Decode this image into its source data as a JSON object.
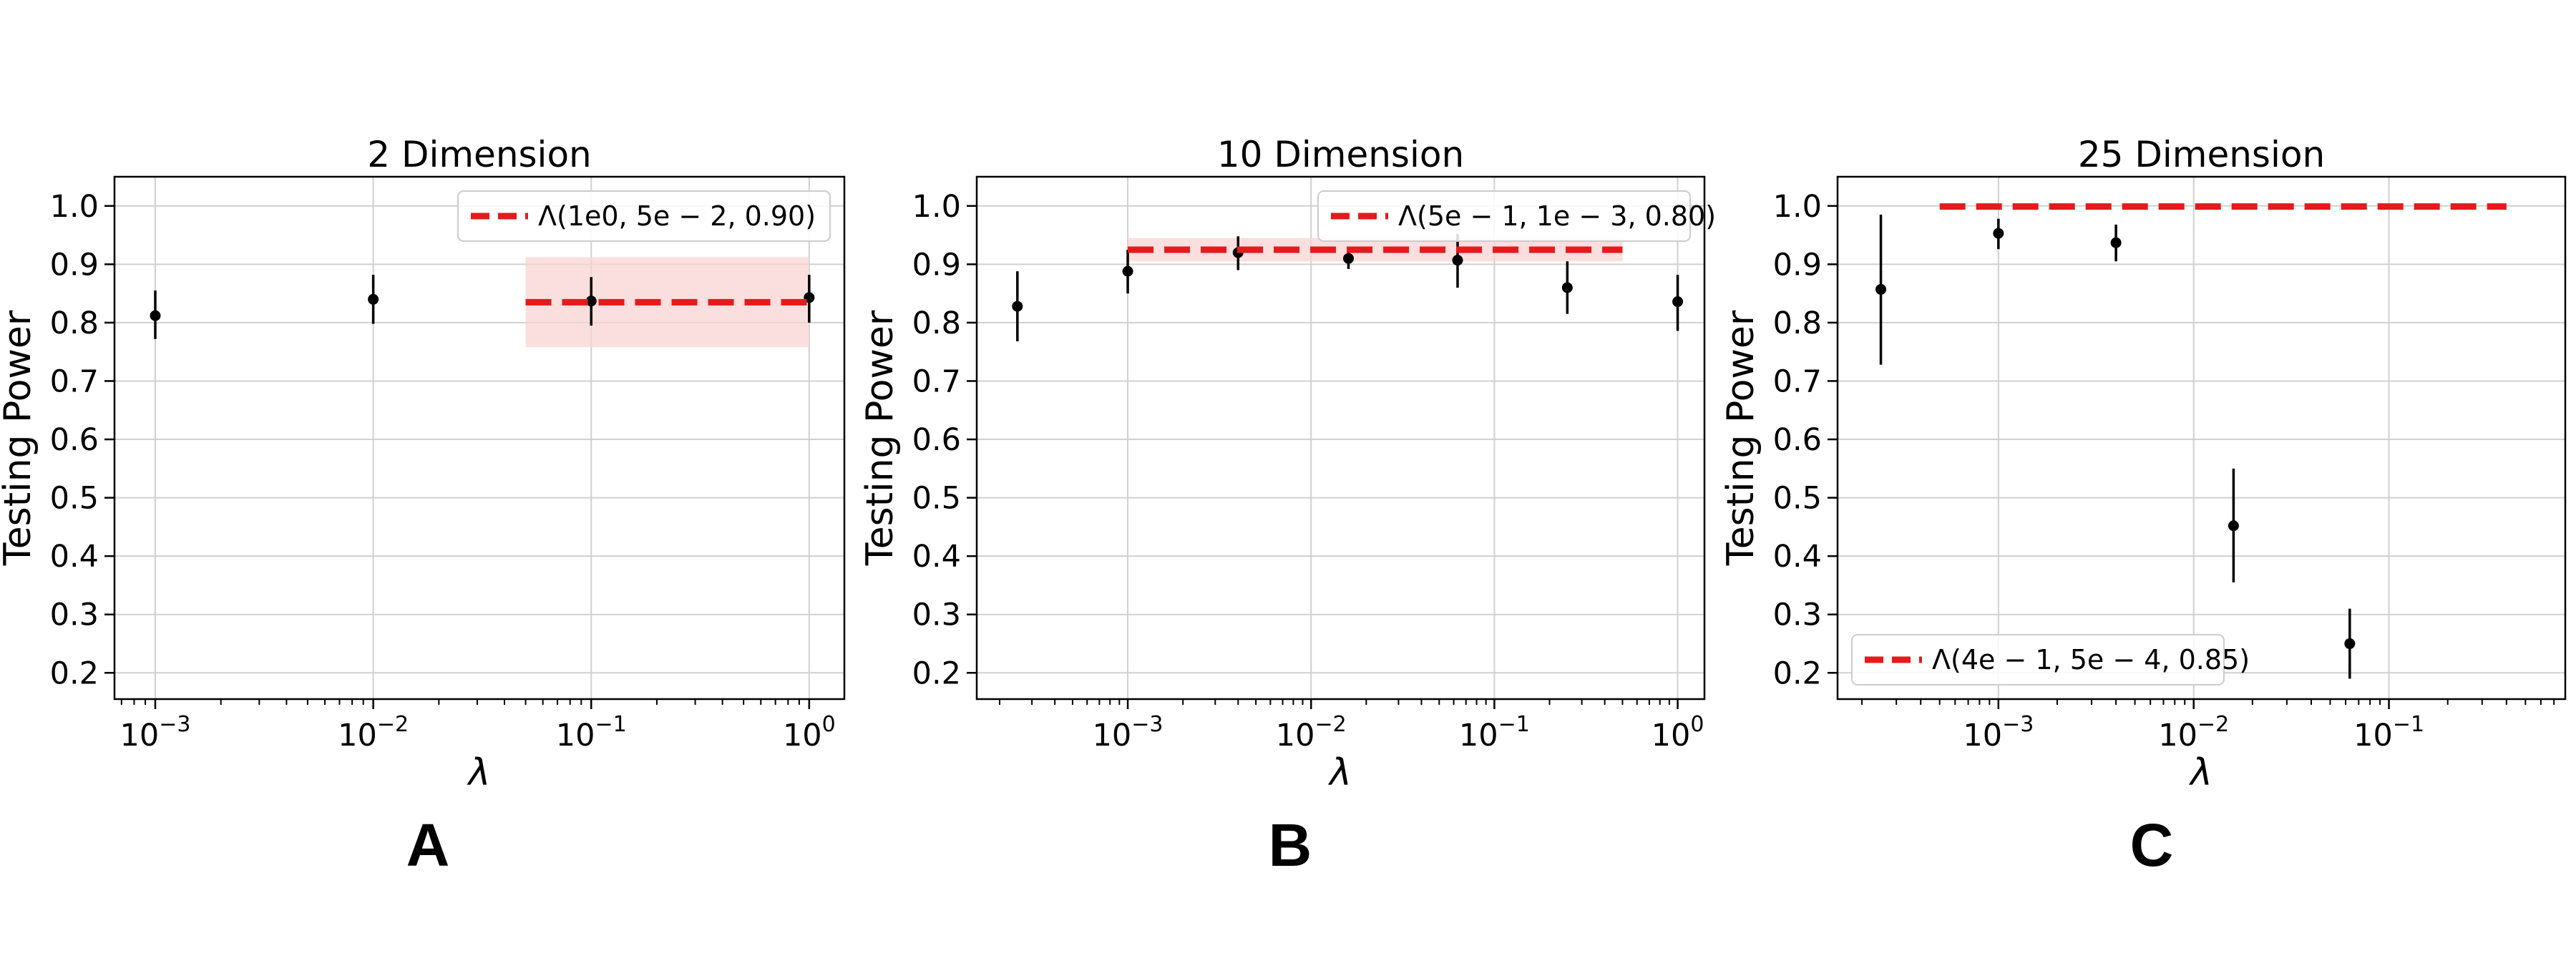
{
  "chart_data": [
    {
      "type": "scatter",
      "title": "2 Dimension",
      "xlabel": "λ",
      "ylabel": "Testing Power",
      "xscale": "log",
      "xlim": [
        0.00065,
        1.45
      ],
      "ylim": [
        0.155,
        1.05
      ],
      "yticks": [
        0.2,
        0.3,
        0.4,
        0.5,
        0.6,
        0.7,
        0.8,
        0.9,
        1.0
      ],
      "ytick_labels": [
        "0.2",
        "0.3",
        "0.4",
        "0.5",
        "0.6",
        "0.7",
        "0.8",
        "0.9",
        "1.0"
      ],
      "xticks": [
        {
          "value": 0.001,
          "base": "10",
          "exp": "−3"
        },
        {
          "value": 0.01,
          "base": "10",
          "exp": "−2"
        },
        {
          "value": 0.1,
          "base": "10",
          "exp": "−1"
        },
        {
          "value": 1,
          "base": "10",
          "exp": "0"
        }
      ],
      "grid": true,
      "points": [
        {
          "x": 0.001,
          "y": 0.812,
          "lo": 0.772,
          "hi": 0.855
        },
        {
          "x": 0.01,
          "y": 0.84,
          "lo": 0.798,
          "hi": 0.882
        },
        {
          "x": 0.1,
          "y": 0.837,
          "lo": 0.795,
          "hi": 0.878
        },
        {
          "x": 1.0,
          "y": 0.843,
          "lo": 0.8,
          "hi": 0.882
        }
      ],
      "reference": {
        "x_start": 0.05,
        "x_end": 1.0,
        "y": 0.835,
        "band": [
          0.758,
          0.912
        ],
        "label": "Λ(1e0, 5e − 2, 0.90)"
      },
      "legend_position": "upper right",
      "panel_label": "A"
    },
    {
      "type": "scatter",
      "title": "10 Dimension",
      "xlabel": "λ",
      "ylabel": "Testing Power",
      "xscale": "log",
      "xlim": [
        0.00015,
        1.4
      ],
      "ylim": [
        0.155,
        1.05
      ],
      "yticks": [
        0.2,
        0.3,
        0.4,
        0.5,
        0.6,
        0.7,
        0.8,
        0.9,
        1.0
      ],
      "ytick_labels": [
        "0.2",
        "0.3",
        "0.4",
        "0.5",
        "0.6",
        "0.7",
        "0.8",
        "0.9",
        "1.0"
      ],
      "xticks": [
        {
          "value": 0.001,
          "base": "10",
          "exp": "−3"
        },
        {
          "value": 0.01,
          "base": "10",
          "exp": "−2"
        },
        {
          "value": 0.1,
          "base": "10",
          "exp": "−1"
        },
        {
          "value": 1,
          "base": "10",
          "exp": "0"
        }
      ],
      "grid": true,
      "points": [
        {
          "x": 0.00025,
          "y": 0.828,
          "lo": 0.768,
          "hi": 0.888
        },
        {
          "x": 0.001,
          "y": 0.888,
          "lo": 0.85,
          "hi": 0.925
        },
        {
          "x": 0.004,
          "y": 0.92,
          "lo": 0.89,
          "hi": 0.948
        },
        {
          "x": 0.016,
          "y": 0.91,
          "lo": 0.892,
          "hi": 0.928
        },
        {
          "x": 0.063,
          "y": 0.907,
          "lo": 0.86,
          "hi": 0.952
        },
        {
          "x": 0.25,
          "y": 0.86,
          "lo": 0.815,
          "hi": 0.905
        },
        {
          "x": 1.0,
          "y": 0.836,
          "lo": 0.786,
          "hi": 0.882
        }
      ],
      "reference": {
        "x_start": 0.001,
        "x_end": 0.5,
        "y": 0.925,
        "band": [
          0.905,
          0.945
        ],
        "label": "Λ(5e − 1, 1e − 3, 0.80)"
      },
      "legend_position": "upper right",
      "panel_label": "B"
    },
    {
      "type": "scatter",
      "title": "25 Dimension",
      "xlabel": "λ",
      "ylabel": "Testing Power",
      "xscale": "log",
      "xlim": [
        0.00015,
        0.8
      ],
      "ylim": [
        0.155,
        1.05
      ],
      "yticks": [
        0.2,
        0.3,
        0.4,
        0.5,
        0.6,
        0.7,
        0.8,
        0.9,
        1.0
      ],
      "ytick_labels": [
        "0.2",
        "0.3",
        "0.4",
        "0.5",
        "0.6",
        "0.7",
        "0.8",
        "0.9",
        "1.0"
      ],
      "xticks": [
        {
          "value": 0.001,
          "base": "10",
          "exp": "−3"
        },
        {
          "value": 0.01,
          "base": "10",
          "exp": "−2"
        },
        {
          "value": 0.1,
          "base": "10",
          "exp": "−1"
        }
      ],
      "grid": true,
      "points": [
        {
          "x": 0.00025,
          "y": 0.857,
          "lo": 0.728,
          "hi": 0.985
        },
        {
          "x": 0.001,
          "y": 0.953,
          "lo": 0.926,
          "hi": 0.978
        },
        {
          "x": 0.004,
          "y": 0.937,
          "lo": 0.905,
          "hi": 0.968
        },
        {
          "x": 0.016,
          "y": 0.452,
          "lo": 0.355,
          "hi": 0.55
        },
        {
          "x": 0.063,
          "y": 0.25,
          "lo": 0.19,
          "hi": 0.31
        }
      ],
      "reference": {
        "x_start": 0.0005,
        "x_end": 0.4,
        "y": 0.999,
        "band": [
          0.999,
          0.999
        ],
        "label": "Λ(4e − 1, 5e − 4, 0.85)"
      },
      "legend_position": "lower left",
      "panel_label": "C"
    }
  ],
  "colors": {
    "reference_line": "#e41a1c",
    "band": "#fad4d4",
    "points": "#000000",
    "grid": "#d0d0d0"
  }
}
